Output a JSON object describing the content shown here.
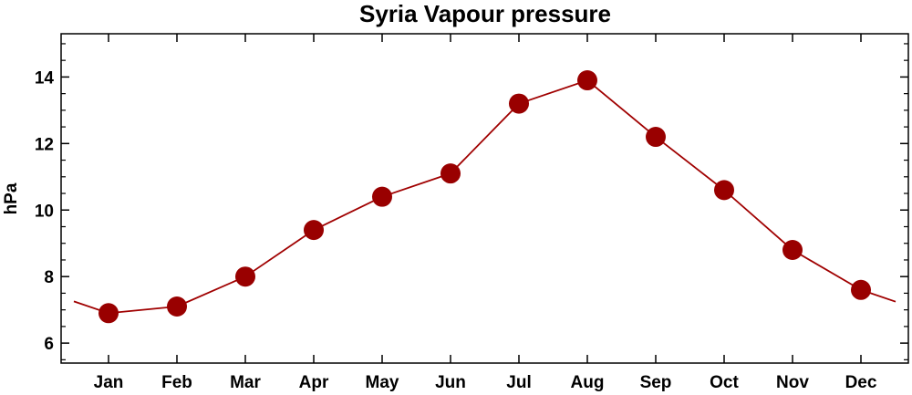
{
  "chart_data": {
    "type": "line",
    "title": "Syria Vapour pressure",
    "xlabel": "",
    "ylabel": "hPa",
    "categories": [
      "Jan",
      "Feb",
      "Mar",
      "Apr",
      "May",
      "Jun",
      "Jul",
      "Aug",
      "Sep",
      "Oct",
      "Nov",
      "Dec"
    ],
    "series": [
      {
        "values": [
          6.9,
          7.1,
          8.0,
          9.4,
          10.4,
          11.1,
          13.2,
          13.9,
          12.2,
          10.6,
          8.8,
          7.6
        ]
      }
    ],
    "yticks": [
      6,
      8,
      10,
      12,
      14
    ],
    "ylim": [
      5.4,
      15.3
    ],
    "grid": false,
    "legend": "none",
    "colors": {
      "line": "#a00000",
      "marker": "#990000",
      "axis": "#000000"
    }
  }
}
